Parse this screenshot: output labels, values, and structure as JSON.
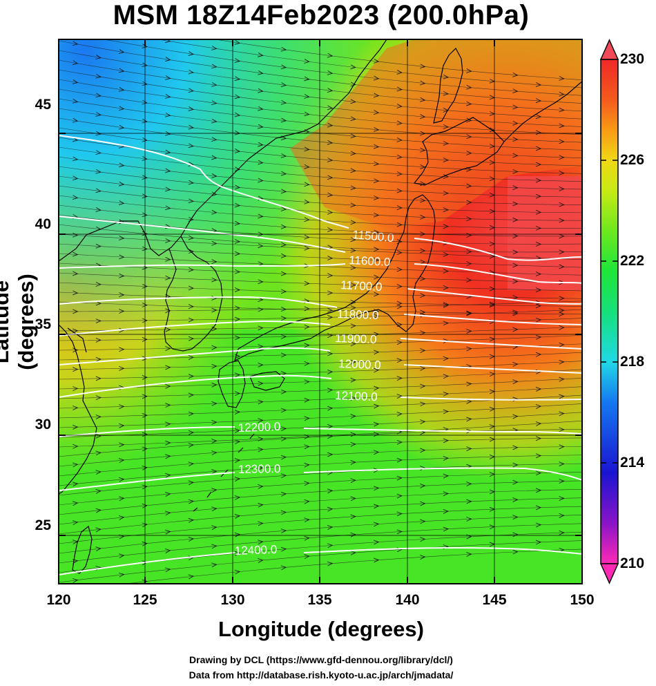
{
  "title": "MSM 18Z14Feb2023 (200.0hPa)",
  "axes": {
    "xlabel": "Longitude (degrees)",
    "ylabel": "Latitude  (degrees)",
    "xticks": [
      "120",
      "125",
      "130",
      "135",
      "140",
      "145",
      "150"
    ],
    "yticks": [
      "45",
      "40",
      "35",
      "30",
      "25"
    ]
  },
  "colorbar": {
    "ticks": [
      "230",
      "226",
      "222",
      "218",
      "214",
      "210"
    ],
    "range": [
      210,
      230
    ],
    "colors": [
      "#ff2ab4",
      "#8a14c8",
      "#1a14d2",
      "#1478f0",
      "#20d8e6",
      "#16e07a",
      "#1ee63a",
      "#6ee81e",
      "#c8ea14",
      "#f0d814",
      "#f89a14",
      "#f45a1c",
      "#ef2828",
      "#f04a58"
    ]
  },
  "contours": {
    "labels": [
      "11500.0",
      "11600.0",
      "11700.0",
      "11800.0",
      "11900.0",
      "12000.0",
      "12100.0",
      "12200.0",
      "12300.0",
      "12400.0"
    ]
  },
  "credits": [
    "Drawing by DCL (https://www.gfd-dennou.org/library/dcl/)",
    "Data from http://database.rish.kyoto-u.ac.jp/arch/jmadata/"
  ]
}
